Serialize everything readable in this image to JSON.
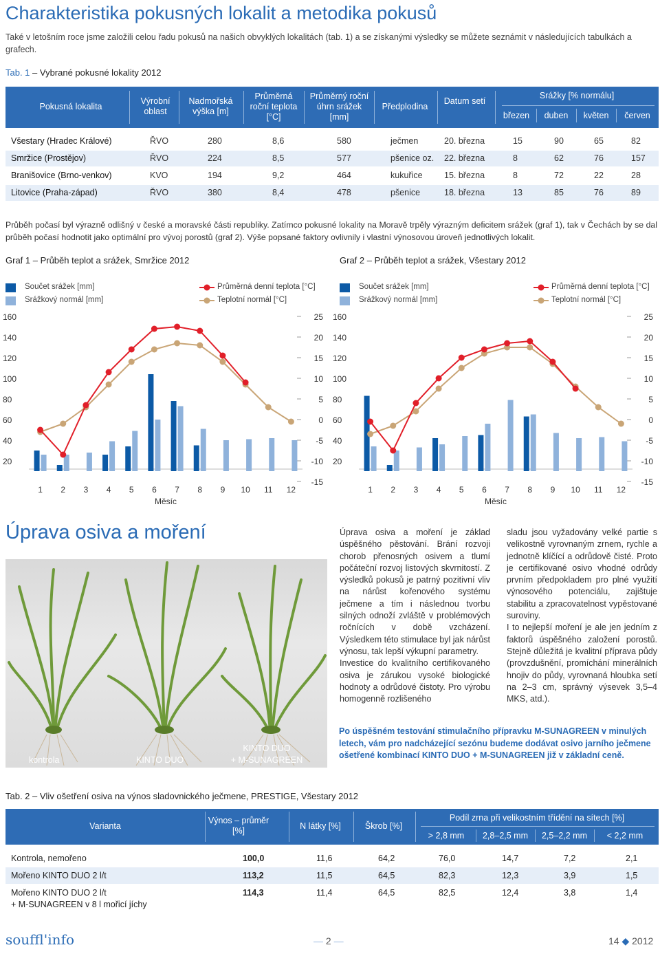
{
  "title": "Charakteristika pokusných lokalit a metodika pokusů",
  "intro": "Také v letošním roce jsme založili celou řadu pokusů na našich obvyklých lokalitách (tab. 1) a se získanými výsledky se můžete seznámit v následujících tabulkách a grafech.",
  "table1": {
    "caption_label": "Tab. 1",
    "caption_text": " – Vybrané pokusné lokality 2012",
    "headers": {
      "lokalita": "Pokusná lokalita",
      "oblast": "Výrobní oblast",
      "vyska": "Nadmořská výška [m]",
      "teplota": "Průměrná roční teplota [°C]",
      "srazky": "Průměrný roční úhrn srážek [mm]",
      "predplodina": "Předplodina",
      "datum": "Datum setí",
      "srazky_group": "Srážky [% normálu]",
      "brezen": "březen",
      "duben": "duben",
      "kveten": "květen",
      "cerven": "červen"
    },
    "rows": [
      {
        "name": "Všestary (Hradec Králové)",
        "oblast": "ŘVO",
        "vyska": "280",
        "teplota": "8,6",
        "srazky": "580",
        "predplodina": "ječmen",
        "datum": "20. března",
        "b": "15",
        "d": "90",
        "k": "65",
        "c": "82"
      },
      {
        "name": "Smržice (Prostějov)",
        "oblast": "ŘVO",
        "vyska": "224",
        "teplota": "8,5",
        "srazky": "577",
        "predplodina": "pšenice oz.",
        "datum": "22. března",
        "b": "8",
        "d": "62",
        "k": "76",
        "c": "157"
      },
      {
        "name": "Branišovice (Brno-venkov)",
        "oblast": "KVO",
        "vyska": "194",
        "teplota": "9,2",
        "srazky": "464",
        "predplodina": "kukuřice",
        "datum": "15. března",
        "b": "8",
        "d": "72",
        "k": "22",
        "c": "28"
      },
      {
        "name": "Litovice (Praha-západ)",
        "oblast": "ŘVO",
        "vyska": "380",
        "teplota": "8,4",
        "srazky": "478",
        "predplodina": "pšenice",
        "datum": "18. března",
        "b": "13",
        "d": "85",
        "k": "76",
        "c": "89"
      }
    ]
  },
  "weather_paragraph": "Průběh počasí byl výrazně odlišný v české a moravské části republiky. Zatímco pokusné lokality na Moravě trpěly výrazným deficitem srážek (graf 1), tak v Čechách by se dal průběh počasí hodnotit jako optimální pro vývoj porostů (graf 2). Výše popsané faktory ovlivnily i vlastní výnosovou úroveň jednotlivých lokalit.",
  "legend": {
    "precip": "Součet srážek [mm]",
    "precip_normal": "Srážkový normál [mm]",
    "temp": "Průměrná denní teplota [°C]",
    "temp_normal": "Teplotní normál [°C]",
    "xlabel": "Měsíc"
  },
  "colors": {
    "dark_blue": "#0c5aa6",
    "light_blue": "#8fb2db",
    "red": "#e11f29",
    "tan": "#c9a576",
    "header_blue": "#2e6cb5"
  },
  "chart_data": [
    {
      "type": "bar+line",
      "title": "Graf 1 – Průběh teplot a srážek, Smržice 2012",
      "xlabel": "Měsíc",
      "categories": [
        "1",
        "2",
        "3",
        "4",
        "5",
        "6",
        "7",
        "8",
        "9",
        "10",
        "11",
        "12"
      ],
      "y_left_ticks": [
        "160",
        "140",
        "120",
        "100",
        "80",
        "60",
        "40",
        "20"
      ],
      "y_right_ticks": [
        "25",
        "20",
        "15",
        "10",
        "5",
        "0",
        "-5",
        "-10",
        "-15"
      ],
      "ylim_left": [
        10,
        160
      ],
      "ylim_right": [
        -15,
        25
      ],
      "series": [
        {
          "name": "Součet srážek [mm]",
          "kind": "bar",
          "values": [
            null,
            null,
            2,
            20,
            34,
            null,
            null,
            null,
            null,
            null,
            null,
            null
          ]
        },
        {
          "name": "Srážkový normál [mm]",
          "kind": "bar",
          "values": [
            null,
            null,
            null,
            null,
            null,
            null,
            null,
            null,
            null,
            null,
            null,
            null
          ]
        },
        {
          "name": "Průměrná denní teplota [°C]",
          "kind": "line",
          "values": [
            null,
            null,
            null,
            null,
            null,
            null,
            null,
            null,
            null,
            null,
            null,
            null
          ]
        },
        {
          "name": "Teplotní normál [°C]",
          "kind": "line",
          "values": [
            null,
            null,
            null,
            null,
            null,
            null,
            null,
            null,
            null,
            null,
            null,
            null
          ]
        }
      ],
      "bars_dark": [
        30,
        16,
        7,
        26,
        34,
        104,
        78,
        35,
        null,
        null,
        null,
        null
      ],
      "bars_light": [
        26,
        26,
        28,
        39,
        49,
        60,
        73,
        51,
        40,
        41,
        42,
        40
      ],
      "temp": [
        -2.5,
        -8.5,
        3.5,
        11.5,
        17,
        22,
        22.5,
        21.5,
        15.5,
        9,
        null,
        null
      ],
      "temp_normal": [
        -3,
        -1,
        3,
        8.5,
        14,
        17,
        18.5,
        18,
        14,
        8.5,
        3,
        -0.5
      ]
    },
    {
      "type": "bar+line",
      "title": "Graf 2 – Průběh teplot a srážek, Všestary 2012",
      "xlabel": "Měsíc",
      "categories": [
        "1",
        "2",
        "3",
        "4",
        "5",
        "6",
        "7",
        "8",
        "9",
        "10",
        "11",
        "12"
      ],
      "y_left_ticks": [
        "160",
        "140",
        "120",
        "100",
        "80",
        "60",
        "40",
        "20"
      ],
      "y_right_ticks": [
        "25",
        "20",
        "15",
        "10",
        "5",
        "0",
        "-5",
        "-10",
        "-15"
      ],
      "ylim_left": [
        10,
        160
      ],
      "ylim_right": [
        -15,
        25
      ],
      "bars_dark": [
        83,
        16,
        4,
        42,
        null,
        45,
        null,
        63,
        null,
        null,
        null,
        null
      ],
      "bars_light": [
        34,
        30,
        33,
        36,
        44,
        56,
        79,
        65,
        47,
        42,
        43,
        39
      ],
      "temp": [
        -0.5,
        -7.5,
        4,
        10,
        15,
        17,
        18.5,
        19,
        14,
        7.5,
        null,
        null
      ],
      "temp_normal": [
        -3.5,
        -1.5,
        2,
        7.5,
        12.5,
        16,
        17.5,
        17.5,
        13.5,
        8,
        3,
        -1
      ]
    }
  ],
  "section2_title": "Úprava osiva a moření",
  "photo_labels": {
    "kontrola": "kontrola",
    "kinto": "KINTO DUO",
    "kinto_plus_1": "KINTO DUO",
    "kinto_plus_2": "+ M-SUNAGREEN"
  },
  "col1": "Úprava osiva a moření je základ úspěšného pěstování. Brání rozvoji chorob přenosných osivem a tlumí počáteční rozvoj listových skvrnitostí. Z výsledků pokusů je patrný pozitivní vliv na nárůst kořenového systému ječmene a tím i následnou tvorbu silných odnoží zvláště v problémových ročnících v době vzcházení. Výsledkem této stimulace byl jak nárůst výnosu, tak lepší výkupní parametry.",
  "col1b": "Investice do kvalitního certifikovaného osiva je zárukou vysoké biologické hodnoty a odrůdové čistoty. Pro výrobu homogenně rozlišeného",
  "col2": "sladu jsou vyžadovány velké partie s velikostně vyrovnaným zrnem, rychle a jednotně klíčící a odrůdově čisté. Proto je certifikované osivo vhodné odrůdy prvním předpokladem pro plné využití výnosového potenciálu, zajištuje stabilitu a zpracovatelnost vypěstované suroviny.",
  "col2b": "I to nejlepší moření je ale jen jedním z faktorů úspěšného založení porostů. Stejně důležitá je kvalitní příprava půdy (provzdušnění, promíchání minerálních hnojiv do půdy, vyrovnaná hloubka setí na 2–3 cm, správný výsevek 3,5–4 MKS, atd.).",
  "promo": "Po úspěšném testování stimulačního přípravku M-SUNAGREEN v minulých letech, vám pro nadcházející sezónu budeme dodávat osivo jarního ječmene ošetřené kombinací KINTO DUO + M-SUNAGREEN již v základní ceně.",
  "table2": {
    "caption": "Tab. 2 – Vliv ošetření osiva na výnos sladovnického ječmene, PRESTIGE, Všestary 2012",
    "headers": {
      "varianta": "Varianta",
      "vynos": "Výnos – průměr [%]",
      "nlatky": "N látky [%]",
      "skrob": "Škrob [%]",
      "group": "Podíl zrna při velikostním třídění na sítech [%]",
      "s1": "> 2,8 mm",
      "s2": "2,8–2,5 mm",
      "s3": "2,5–2,2 mm",
      "s4": "< 2,2 mm"
    },
    "rows": [
      {
        "name": "Kontrola, nemořeno",
        "name2": "",
        "vynos": "100,0",
        "n": "11,6",
        "skrob": "64,2",
        "s1": "76,0",
        "s2": "14,7",
        "s3": "7,2",
        "s4": "2,1"
      },
      {
        "name": "Mořeno KINTO DUO 2 l/t",
        "name2": "",
        "vynos": "113,2",
        "n": "11,5",
        "skrob": "64,5",
        "s1": "82,3",
        "s2": "12,3",
        "s3": "3,9",
        "s4": "1,5"
      },
      {
        "name": "Mořeno KINTO DUO 2 l/t",
        "name2": "+ M-SUNAGREEN v 8 l mořicí jíchy",
        "vynos": "114,3",
        "n": "11,4",
        "skrob": "64,5",
        "s1": "82,5",
        "s2": "12,4",
        "s3": "3,8",
        "s4": "1,4"
      }
    ]
  },
  "footer": {
    "logo": "souffl'info",
    "page": "2",
    "issue": "14",
    "year": "2012"
  }
}
